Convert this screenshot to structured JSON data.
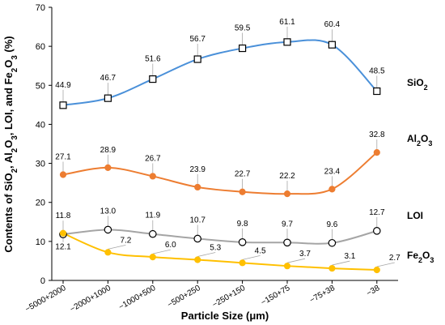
{
  "chart_data": {
    "type": "line",
    "categories": [
      "−5000+2000",
      "−2000+1000",
      "−1000+500",
      "−500+250",
      "−250+150",
      "−150+75",
      "−75+38",
      "−38"
    ],
    "xlabel": "Particle Size (μm)",
    "ylabel": {
      "parts": [
        {
          "t": "Contents of SiO"
        },
        {
          "t": "2",
          "sub": true
        },
        {
          "t": ", Al"
        },
        {
          "t": "2",
          "sub": true
        },
        {
          "t": "O"
        },
        {
          "t": "3",
          "sub": true
        },
        {
          "t": ", LOI, and Fe"
        },
        {
          "t": "2",
          "sub": true
        },
        {
          "t": "O"
        },
        {
          "t": "3",
          "sub": true
        },
        {
          "t": " (%)"
        }
      ]
    },
    "ylim": [
      0,
      70
    ],
    "yticks": [
      0,
      10,
      20,
      30,
      40,
      50,
      60,
      70
    ],
    "grid": false,
    "series": [
      {
        "key": "sio2",
        "labelParts": [
          {
            "t": "SiO"
          },
          {
            "t": "2",
            "sub": true
          }
        ],
        "color": "#4a90d9",
        "marker": "square",
        "values": [
          44.9,
          46.7,
          51.6,
          56.7,
          59.5,
          61.1,
          60.4,
          48.5
        ],
        "labels": [
          "44.9",
          "46.7",
          "51.6",
          "56.7",
          "59.5",
          "61.1",
          "60.4",
          "48.5"
        ]
      },
      {
        "key": "al2o3",
        "labelParts": [
          {
            "t": "Al"
          },
          {
            "t": "2",
            "sub": true
          },
          {
            "t": "O"
          },
          {
            "t": "3",
            "sub": true
          }
        ],
        "color": "#ed7d31",
        "marker": "circle-filled",
        "values": [
          27.1,
          28.9,
          26.7,
          23.9,
          22.7,
          22.2,
          23.4,
          32.8
        ],
        "labels": [
          "27.1",
          "28.9",
          "26.7",
          "23.9",
          "22.7",
          "22.2",
          "23.4",
          "32.8"
        ]
      },
      {
        "key": "loi",
        "labelParts": [
          {
            "t": "LOI"
          }
        ],
        "color": "#a5a5a5",
        "marker": "circle-open",
        "values": [
          11.8,
          13.0,
          11.9,
          10.7,
          9.8,
          9.7,
          9.6,
          12.7
        ],
        "labels": [
          "11.8",
          "13.0",
          "11.9",
          "10.7",
          "9.8",
          "9.7",
          "9.6",
          "12.7"
        ]
      },
      {
        "key": "fe2o3",
        "labelParts": [
          {
            "t": "Fe"
          },
          {
            "t": "2",
            "sub": true
          },
          {
            "t": "O"
          },
          {
            "t": "3",
            "sub": true
          }
        ],
        "color": "#ffc000",
        "marker": "circle-filled",
        "values": [
          12.1,
          7.2,
          6.0,
          5.3,
          4.5,
          3.7,
          3.1,
          2.7
        ],
        "labels": [
          "12.1",
          "7.2",
          "6.0",
          "5.3",
          "4.5",
          "3.7",
          "3.1",
          "2.7"
        ]
      }
    ]
  }
}
